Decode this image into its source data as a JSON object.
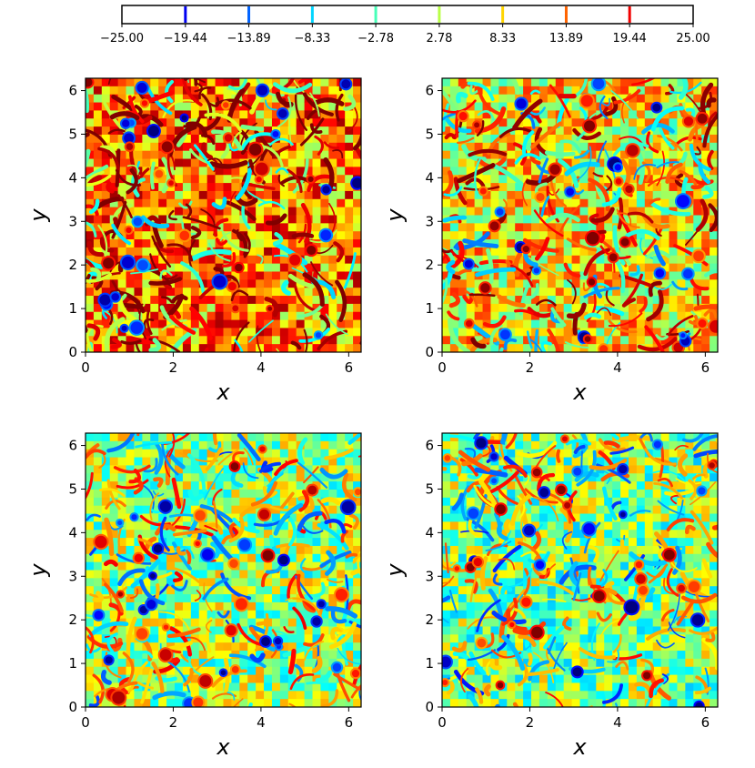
{
  "chart_data": {
    "type": "heatmap",
    "colormap": "jet",
    "colorbar": {
      "orientation": "horizontal",
      "placement": "top",
      "range": [
        -25.0,
        25.0
      ],
      "ticks": [
        -25.0,
        -19.44,
        -13.89,
        -8.33,
        -2.78,
        2.78,
        8.33,
        13.89,
        19.44,
        25.0
      ],
      "tick_labels": [
        "−25.00",
        "−19.44",
        "−13.89",
        "−8.33",
        "−2.78",
        "2.78",
        "8.33",
        "13.89",
        "19.44",
        "25.00"
      ]
    },
    "panels": [
      {
        "xlabel": "x",
        "ylabel": "y",
        "xlim": [
          0,
          6.283
        ],
        "ylim": [
          0,
          6.283
        ],
        "xticks": [
          "0",
          "2",
          "4",
          "6"
        ],
        "yticks": [
          "0",
          "1",
          "2",
          "3",
          "4",
          "5",
          "6"
        ],
        "mean_level": 12.0,
        "amplitude": 16.0
      },
      {
        "xlabel": "x",
        "ylabel": "y",
        "xlim": [
          0,
          6.283
        ],
        "ylim": [
          0,
          6.283
        ],
        "xticks": [
          "0",
          "2",
          "4",
          "6"
        ],
        "yticks": [
          "0",
          "1",
          "2",
          "3",
          "4",
          "5",
          "6"
        ],
        "mean_level": 6.5,
        "amplitude": 15.0
      },
      {
        "xlabel": "x",
        "ylabel": "y",
        "xlim": [
          0,
          6.283
        ],
        "ylim": [
          0,
          6.283
        ],
        "xticks": [
          "0",
          "2",
          "4",
          "6"
        ],
        "yticks": [
          "0",
          "1",
          "2",
          "3",
          "4",
          "5",
          "6"
        ],
        "mean_level": 1.5,
        "amplitude": 14.0
      },
      {
        "xlabel": "x",
        "ylabel": "y",
        "xlim": [
          0,
          6.283
        ],
        "ylim": [
          0,
          6.283
        ],
        "xticks": [
          "0",
          "2",
          "4",
          "6"
        ],
        "yticks": [
          "0",
          "1",
          "2",
          "3",
          "4",
          "5",
          "6"
        ],
        "mean_level": 0.5,
        "amplitude": 14.0
      }
    ]
  }
}
